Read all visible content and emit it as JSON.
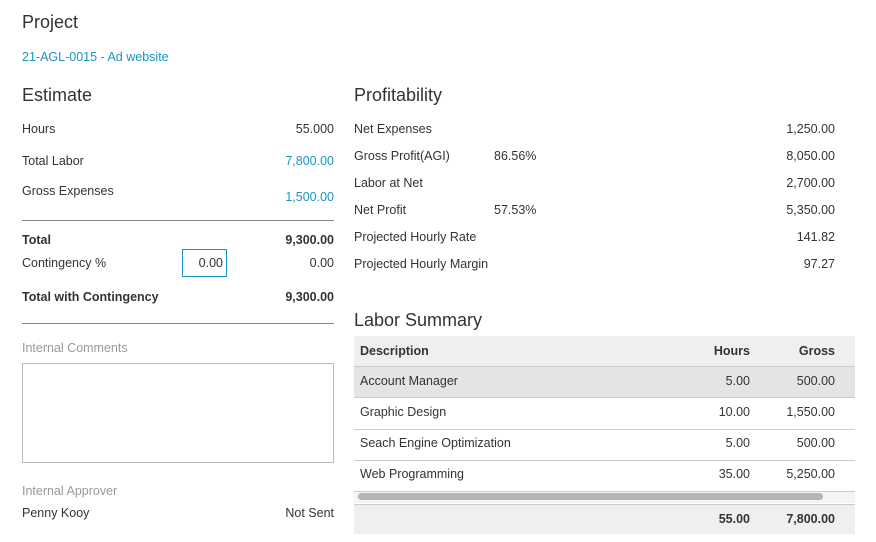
{
  "project": {
    "heading": "Project",
    "link": "21-AGL-0015 - Ad website"
  },
  "estimate": {
    "heading": "Estimate",
    "rows": [
      {
        "label": "Hours",
        "value": "55.000"
      },
      {
        "label": "Total Labor",
        "value": "7,800.00"
      },
      {
        "label": "Gross Expenses",
        "value": "1,500.00"
      }
    ],
    "total": {
      "label": "Total",
      "value": "9,300.00"
    },
    "contingency": {
      "label": "Contingency %",
      "input": "0.00",
      "value": "0.00"
    },
    "total_with_contingency": {
      "label": "Total with Contingency",
      "value": "9,300.00"
    },
    "comments_label": "Internal Comments",
    "approver_label": "Internal Approver",
    "approver": "Penny Kooy",
    "approver_status": "Not Sent"
  },
  "profitability": {
    "heading": "Profitability",
    "rows": [
      {
        "label": "Net Expenses",
        "value": "1,250.00"
      },
      {
        "label": "Gross Profit(AGI)",
        "percent": "86.56%",
        "value": "8,050.00"
      },
      {
        "label": "Labor at Net",
        "value": "2,700.00"
      },
      {
        "label": "Net Profit",
        "percent": "57.53%",
        "value": "5,350.00"
      },
      {
        "label": "Projected Hourly Rate",
        "value": "141.82"
      },
      {
        "label": "Projected Hourly Margin",
        "value": "97.27"
      }
    ]
  },
  "labor_summary": {
    "heading": "Labor Summary",
    "columns": [
      "Description",
      "Hours",
      "Gross"
    ],
    "rows": [
      [
        "Account Manager",
        "5.00",
        "500.00"
      ],
      [
        "Graphic Design",
        "10.00",
        "1,550.00"
      ],
      [
        "Seach Engine Optimization",
        "5.00",
        "500.00"
      ],
      [
        "Web Programming",
        "35.00",
        "5,250.00"
      ]
    ],
    "totals": [
      "55.00",
      "7,800.00"
    ]
  }
}
